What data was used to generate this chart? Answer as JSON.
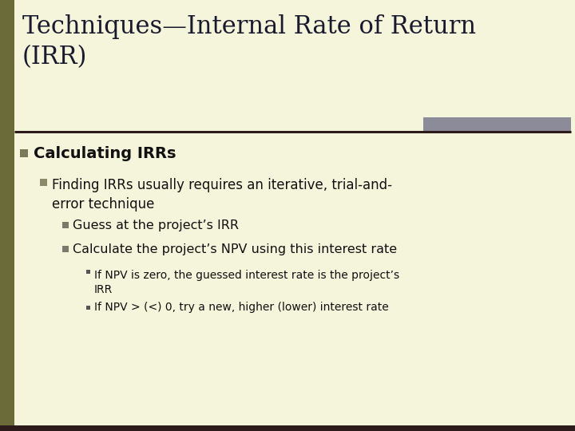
{
  "title_line1": "Techniques—Internal Rate of Return",
  "title_line2": "(IRR)",
  "background_color": "#f5f5dc",
  "title_color": "#1a1a2e",
  "text_color": "#111111",
  "left_bar_color": "#6b6b3a",
  "top_right_bar_color": "#8b8b9a",
  "divider_color": "#2d1a1a",
  "bullet1_color": "#7a7a5a",
  "bullet2_color": "#8a8a6a",
  "bullet3_color": "#7a7a6a",
  "level1_text": "Calculating IRRs",
  "level2_text": "Finding IRRs usually requires an iterative, trial-and-\nerror technique",
  "level3_text1": "Guess at the project’s IRR",
  "level3_text2": "Calculate the project’s NPV using this interest rate",
  "level4_text1": "If NPV is zero, the guessed interest rate is the project’s\nIRR",
  "level4_text2": "If NPV > (<) 0, try a new, higher (lower) interest rate",
  "title_fontsize": 22,
  "level1_fontsize": 14,
  "level2_fontsize": 12,
  "level3_fontsize": 11.5,
  "level4_fontsize": 10,
  "fig_width": 7.2,
  "fig_height": 5.4,
  "dpi": 100
}
